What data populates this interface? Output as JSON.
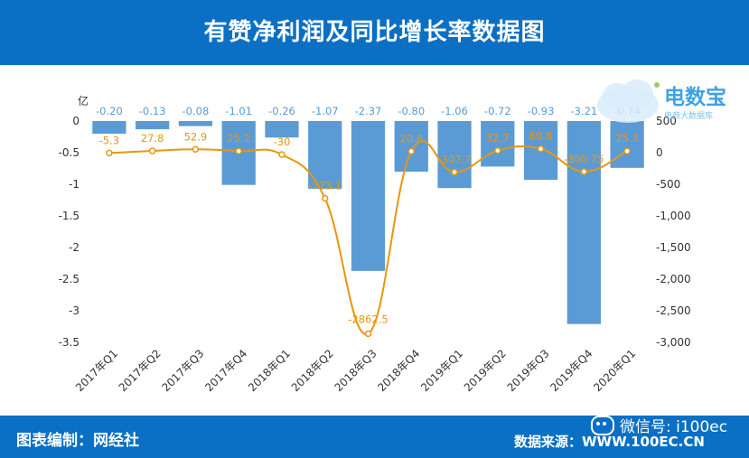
{
  "header": {
    "title": "有赞净利润及同比增长率数据图"
  },
  "footer": {
    "left_label": "图表编制：网经社",
    "right_label": "数据来源：WWW.100EC.CN",
    "wechat_label": "微信号: i100ec"
  },
  "logo": {
    "brand": "电数宝",
    "sub": "电商大数据库",
    "icon": "cloud-logo-icon"
  },
  "colors": {
    "bar": "#5b9bd5",
    "line": "#e8960c",
    "header": "#0b70c4",
    "bar_label": "#5b9bd5",
    "line_label": "#e8960c"
  },
  "chart_data": {
    "type": "bar",
    "categories": [
      "2017年Q1",
      "2017年Q2",
      "2017年Q3",
      "2017年Q4",
      "2018年Q1",
      "2018年Q2",
      "2018年Q3",
      "2018年Q4",
      "2019年Q1",
      "2019年Q2",
      "2019年Q3",
      "2019年Q4",
      "2020年Q1"
    ],
    "series": [
      {
        "type": "bar",
        "axis": "left",
        "values": [
          -0.2,
          -0.13,
          -0.08,
          -1.01,
          -0.26,
          -1.07,
          -2.37,
          -0.8,
          -1.06,
          -0.72,
          -0.93,
          -3.21,
          -0.74
        ],
        "labels": [
          "-0.20",
          "-0.13",
          "-0.08",
          "-1.01",
          "-0.26",
          "-1.07",
          "-2.37",
          "-0.80",
          "-1.06",
          "-0.72",
          "-0.93",
          "-3.21",
          "-0.74"
        ]
      },
      {
        "type": "line",
        "axis": "right",
        "values": [
          -5.3,
          27.8,
          52.9,
          25.2,
          -30,
          -723.1,
          -2862.5,
          20.8,
          -307.7,
          32.7,
          60.8,
          -300.75,
          25.3
        ],
        "labels": [
          "-5.3",
          "27.8",
          "52.9",
          "25.2",
          "-30",
          "-723.1",
          "-2862.5",
          "20.8",
          "-307.7",
          "32.7",
          "60.8",
          "-300.75",
          "25.3"
        ]
      }
    ],
    "yunit_left": "亿",
    "ylim_left": [
      -3.5,
      0
    ],
    "yticks_left": [
      "0",
      "-0.5",
      "-1",
      "-1.5",
      "-2",
      "-2.5",
      "-3",
      "-3.5"
    ],
    "ylim_right": [
      -3000,
      500
    ],
    "yticks_right": [
      "500",
      "0",
      "-500",
      "-1,000",
      "-1,500",
      "-2,000",
      "-2,500",
      "-3,000"
    ],
    "grid": false,
    "legend": "none"
  }
}
